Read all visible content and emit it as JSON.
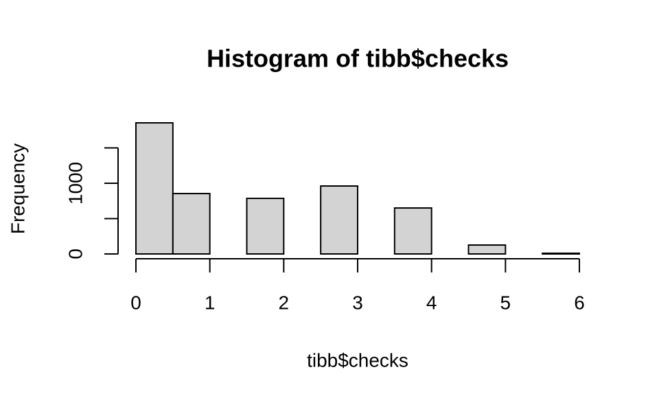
{
  "chart_data": {
    "type": "histogram",
    "title": "Histogram of tibb$checks",
    "xlabel": "tibb$checks",
    "ylabel": "Frequency",
    "bins": [
      0,
      0.5,
      1,
      1.5,
      2,
      2.5,
      3,
      3.5,
      4,
      4.5,
      5,
      5.5,
      6
    ],
    "counts": [
      1854,
      854,
      0,
      786,
      0,
      961,
      0,
      650,
      0,
      126,
      0,
      10
    ],
    "color": "#d3d3d3",
    "xlim": [
      0,
      6
    ],
    "xticks": [
      0,
      1,
      2,
      3,
      4,
      5,
      6
    ],
    "ylim": [
      0,
      1854
    ],
    "yticks": [
      0,
      {
        "value": 500,
        "label": null
      },
      1000,
      {
        "value": 1500,
        "label": null
      }
    ]
  }
}
